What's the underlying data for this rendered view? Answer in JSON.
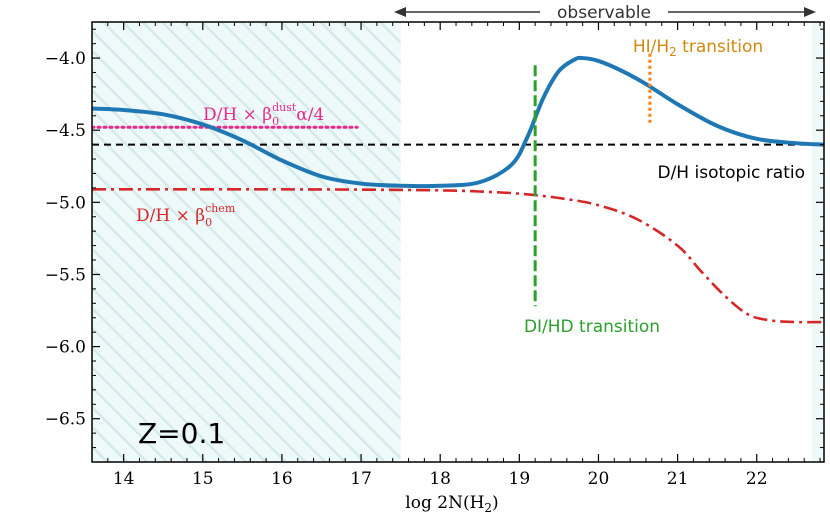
{
  "chart_data": {
    "type": "line",
    "title": "",
    "xlabel": "log 2N(H",
    "xlabel_sub": "2",
    "xlabel_close": ")",
    "ylabel": "",
    "xlim": [
      13.6,
      22.85
    ],
    "ylim": [
      -6.8,
      -3.75
    ],
    "xticks": [
      14,
      15,
      16,
      17,
      18,
      19,
      20,
      21,
      22
    ],
    "yticks": [
      -4.0,
      -4.5,
      -5.0,
      -5.5,
      -6.0,
      -6.5
    ],
    "xtick_labels": [
      "14",
      "15",
      "16",
      "17",
      "18",
      "19",
      "20",
      "21",
      "22"
    ],
    "ytick_labels": [
      "−4.0",
      "−4.5",
      "−5.0",
      "−5.5",
      "−6.0",
      "−6.5"
    ],
    "grid": false,
    "shaded_region": {
      "x": [
        13.6,
        17.5
      ],
      "pattern": "hatched",
      "color": "#dff3f3"
    },
    "observable_range": {
      "x": [
        17.5,
        22.85
      ],
      "label": "observable"
    },
    "series": [
      {
        "name": "D/H (total)",
        "style": "solid",
        "color": "#1f77b4",
        "x": [
          13.6,
          14.0,
          14.5,
          15.0,
          15.5,
          16.0,
          16.5,
          17.0,
          17.5,
          18.0,
          18.5,
          18.9,
          19.1,
          19.3,
          19.5,
          19.7,
          19.8,
          20.0,
          20.3,
          20.6,
          21.0,
          21.5,
          22.0,
          22.5,
          22.85
        ],
        "y": [
          -4.35,
          -4.36,
          -4.39,
          -4.46,
          -4.57,
          -4.71,
          -4.82,
          -4.87,
          -4.885,
          -4.885,
          -4.86,
          -4.74,
          -4.55,
          -4.28,
          -4.09,
          -4.01,
          -4.0,
          -4.02,
          -4.09,
          -4.18,
          -4.32,
          -4.47,
          -4.56,
          -4.59,
          -4.6
        ]
      },
      {
        "name": "D/H × β0chem",
        "style": "dashdot",
        "color": "#d62728",
        "x": [
          13.6,
          15.0,
          16.0,
          17.0,
          18.0,
          18.5,
          19.0,
          19.5,
          20.0,
          20.5,
          21.0,
          21.3,
          21.6,
          21.9,
          22.2,
          22.5,
          22.85
        ],
        "y": [
          -4.91,
          -4.91,
          -4.91,
          -4.912,
          -4.917,
          -4.925,
          -4.94,
          -4.97,
          -5.02,
          -5.12,
          -5.3,
          -5.48,
          -5.65,
          -5.78,
          -5.82,
          -5.83,
          -5.83
        ]
      },
      {
        "name": "D/H × β0dust α/4",
        "style": "dotted",
        "color": "#e7298a",
        "x": [
          13.6,
          16.95
        ],
        "y": [
          -4.48,
          -4.48
        ]
      },
      {
        "name": "D/H isotopic ratio",
        "style": "dashed",
        "color": "#000000",
        "x": [
          13.6,
          22.85
        ],
        "y": [
          -4.6,
          -4.6
        ]
      }
    ],
    "markers": [
      {
        "name": "DI/HD transition",
        "x": 19.2,
        "y": [
          -4.05,
          -5.72
        ],
        "style": "dashed",
        "color": "#2ca02c"
      },
      {
        "name": "HI/H2 transition",
        "x": 20.65,
        "y": [
          -3.97,
          -4.45
        ],
        "style": "dotted",
        "color": "#ff7f0e"
      }
    ],
    "annotations": {
      "isotopic": "D/H isotopic ratio",
      "di_hd": "DI/HD transition",
      "hi_h2_prefix": "HI/H",
      "hi_h2_sub": "2",
      "hi_h2_suffix": " transition",
      "dust_prefix": "D/H × β",
      "dust_sub": "0",
      "dust_sup": "dust",
      "dust_suffix": "α/4",
      "chem_prefix": "D/H × β",
      "chem_sub": "0",
      "chem_sup": "chem",
      "metallicity": "Z=0.1"
    },
    "colors": {
      "isotopic_text": "#000000",
      "di_hd_text": "#2ca02c",
      "hi_h2_text": "#d08a10",
      "dust_text": "#e7298a",
      "chem_text": "#d62728"
    }
  }
}
